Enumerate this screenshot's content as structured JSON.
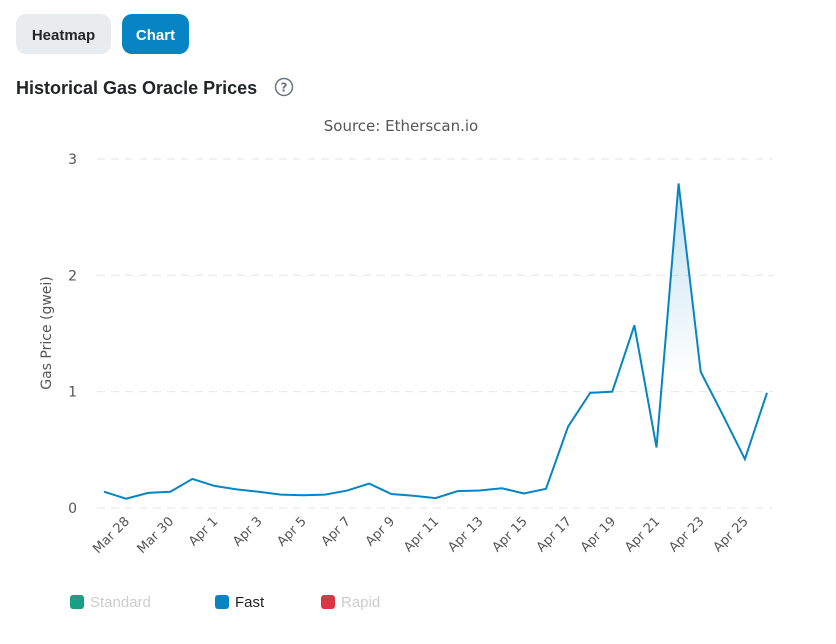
{
  "tabs": [
    "Heatmap",
    "Chart"
  ],
  "header": {
    "title": "Historical Gas Oracle Prices"
  },
  "chart_data": {
    "type": "line",
    "subtitle": "Source: Etherscan.io",
    "y_label": "Gas Price (gwei)",
    "categories": [
      null,
      "Mar 28",
      null,
      "Mar 30",
      null,
      "Apr 1",
      null,
      "Apr 3",
      null,
      "Apr 5",
      null,
      "Apr 7",
      null,
      "Apr 9",
      null,
      "Apr 11",
      null,
      "Apr 13",
      null,
      "Apr 15",
      null,
      "Apr 17",
      null,
      "Apr 19",
      null,
      "Apr 21",
      null,
      "Apr 23",
      null,
      "Apr 25",
      null
    ],
    "series": [
      {
        "name": "Standard",
        "color": "#16a085",
        "visible": false
      },
      {
        "name": "Fast",
        "color": "#0784c3",
        "visible": true,
        "values": [
          0.14,
          0.08,
          0.13,
          0.14,
          0.25,
          0.19,
          0.16,
          0.14,
          0.115,
          0.11,
          0.115,
          0.15,
          0.21,
          0.12,
          0.105,
          0.085,
          0.145,
          0.15,
          0.17,
          0.125,
          0.165,
          0.7,
          0.99,
          1.0,
          1.57,
          0.52,
          2.79,
          1.17,
          0.8,
          0.42,
          0.99
        ]
      },
      {
        "name": "Rapid",
        "color": "#dc3545",
        "visible": false
      }
    ],
    "ylim": [
      0,
      3
    ],
    "yticks": [
      0,
      1,
      2,
      3
    ],
    "grid": true
  }
}
